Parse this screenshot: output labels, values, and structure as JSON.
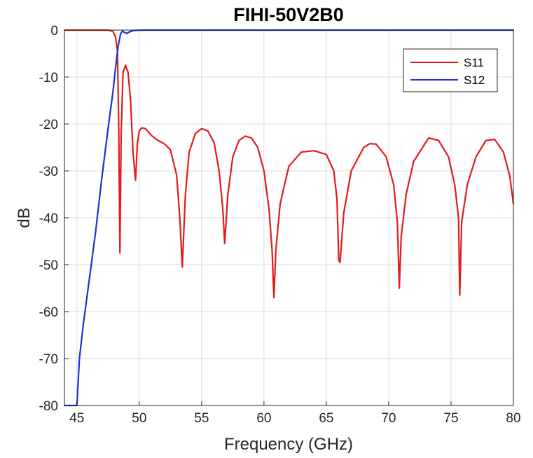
{
  "chart_data": {
    "type": "line",
    "title": "FIHI-50V2B0",
    "xlabel": "Frequency (GHz)",
    "ylabel": "dB",
    "xlim": [
      44,
      80
    ],
    "ylim": [
      -80,
      0
    ],
    "xticks": [
      45,
      50,
      55,
      60,
      65,
      70,
      75,
      80
    ],
    "yticks": [
      0,
      -10,
      -20,
      -30,
      -40,
      -50,
      -60,
      -70,
      -80
    ],
    "grid": true,
    "legend_position": "top-right",
    "series": [
      {
        "name": "S11",
        "color": "#e31a1c",
        "x": [
          44,
          45,
          46,
          47,
          47.5,
          47.9,
          48.1,
          48.25,
          48.35,
          48.45,
          48.55,
          48.7,
          48.9,
          49.1,
          49.3,
          49.5,
          49.7,
          49.85,
          50.0,
          50.2,
          50.5,
          51.0,
          51.5,
          52.0,
          52.5,
          53.0,
          53.25,
          53.45,
          53.7,
          54.0,
          54.5,
          55.0,
          55.5,
          56.0,
          56.4,
          56.7,
          56.85,
          57.1,
          57.5,
          58.0,
          58.5,
          59.0,
          59.5,
          60.0,
          60.4,
          60.65,
          60.8,
          60.95,
          61.3,
          62.0,
          63.0,
          64.0,
          65.0,
          65.6,
          65.85,
          66.0,
          66.1,
          66.4,
          67.0,
          68.0,
          68.5,
          69.0,
          69.8,
          70.4,
          70.7,
          70.85,
          71.0,
          71.4,
          72.0,
          73.0,
          73.2,
          74.0,
          74.8,
          75.3,
          75.6,
          75.7,
          75.85,
          76.3,
          77.0,
          77.8,
          78.5,
          79.2,
          79.7,
          80.0
        ],
        "y": [
          0,
          0,
          0,
          0,
          0,
          -0.3,
          -1.5,
          -4.5,
          -20,
          -47.5,
          -22,
          -9,
          -7.5,
          -9,
          -15,
          -26,
          -32,
          -24,
          -21.5,
          -20.8,
          -21,
          -22.5,
          -23.5,
          -24.2,
          -25.5,
          -31,
          -40,
          -50.5,
          -35,
          -26,
          -22,
          -21,
          -21.5,
          -24,
          -30,
          -38,
          -45.5,
          -35,
          -27,
          -23.5,
          -22.6,
          -23,
          -25,
          -30,
          -38,
          -47,
          -57,
          -47,
          -37,
          -29,
          -26,
          -25.7,
          -26.5,
          -30,
          -36,
          -49,
          -49.5,
          -39,
          -30,
          -25,
          -24.2,
          -24.3,
          -27,
          -33,
          -41,
          -55,
          -44,
          -35,
          -28,
          -23.8,
          -23,
          -23.5,
          -27,
          -33,
          -40,
          -56.5,
          -41,
          -33,
          -27,
          -23.5,
          -23.3,
          -26,
          -31,
          -37
        ]
      },
      {
        "name": "S12",
        "color": "#1f2fd6",
        "x": [
          44,
          45,
          45.2,
          45.5,
          46.0,
          46.5,
          47.0,
          47.5,
          47.9,
          48.1,
          48.3,
          48.5,
          48.65,
          48.8,
          49.0,
          49.2,
          49.5,
          50,
          55,
          60,
          65,
          70,
          75,
          80
        ],
        "y": [
          -80,
          -80,
          -70,
          -63,
          -53,
          -43,
          -31.5,
          -21,
          -13,
          -8,
          -3.5,
          -0.8,
          -0.2,
          -0.5,
          -0.7,
          -0.4,
          -0.1,
          0,
          0,
          0,
          0,
          0,
          0,
          0
        ]
      }
    ]
  }
}
